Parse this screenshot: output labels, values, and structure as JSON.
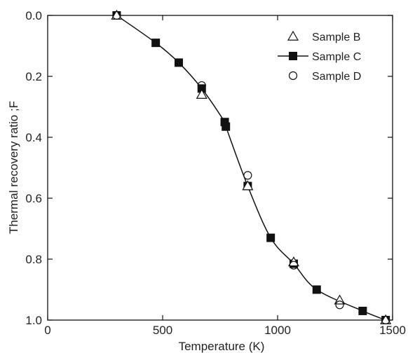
{
  "chart_data": {
    "type": "scatter",
    "xlabel": "Temperature (K)",
    "ylabel": "Thermal recovery ratio ;F",
    "xlim": [
      0,
      1500
    ],
    "ylim": [
      1.0,
      0.0
    ],
    "y_axis_inverted": true,
    "grid": false,
    "legend_position": "top-right",
    "x_ticks": [
      "0",
      "500",
      "1000",
      "1500"
    ],
    "y_ticks": [
      "0.0",
      "0.2",
      "0.4",
      "0.6",
      "0.8",
      "1.0"
    ],
    "series": [
      {
        "name": "Sample B",
        "marker": "open-triangle",
        "x": [
          300,
          670,
          870,
          1070,
          1270,
          1470
        ],
        "y": [
          0.0,
          0.26,
          0.56,
          0.81,
          0.935,
          1.0
        ]
      },
      {
        "name": "Sample C",
        "marker": "filled-square",
        "line": true,
        "x": [
          300,
          470,
          570,
          670,
          770,
          775,
          870,
          970,
          1070,
          1170,
          1370,
          1470
        ],
        "y": [
          0.0,
          0.09,
          0.155,
          0.24,
          0.35,
          0.365,
          0.56,
          0.73,
          0.815,
          0.9,
          0.97,
          1.0
        ]
      },
      {
        "name": "Sample D",
        "marker": "open-circle",
        "x": [
          300,
          670,
          870,
          1070,
          1270,
          1470
        ],
        "y": [
          0.0,
          0.23,
          0.525,
          0.82,
          0.95,
          1.0
        ]
      }
    ]
  },
  "colors": {
    "ink": "#111111",
    "background": "#ffffff"
  }
}
